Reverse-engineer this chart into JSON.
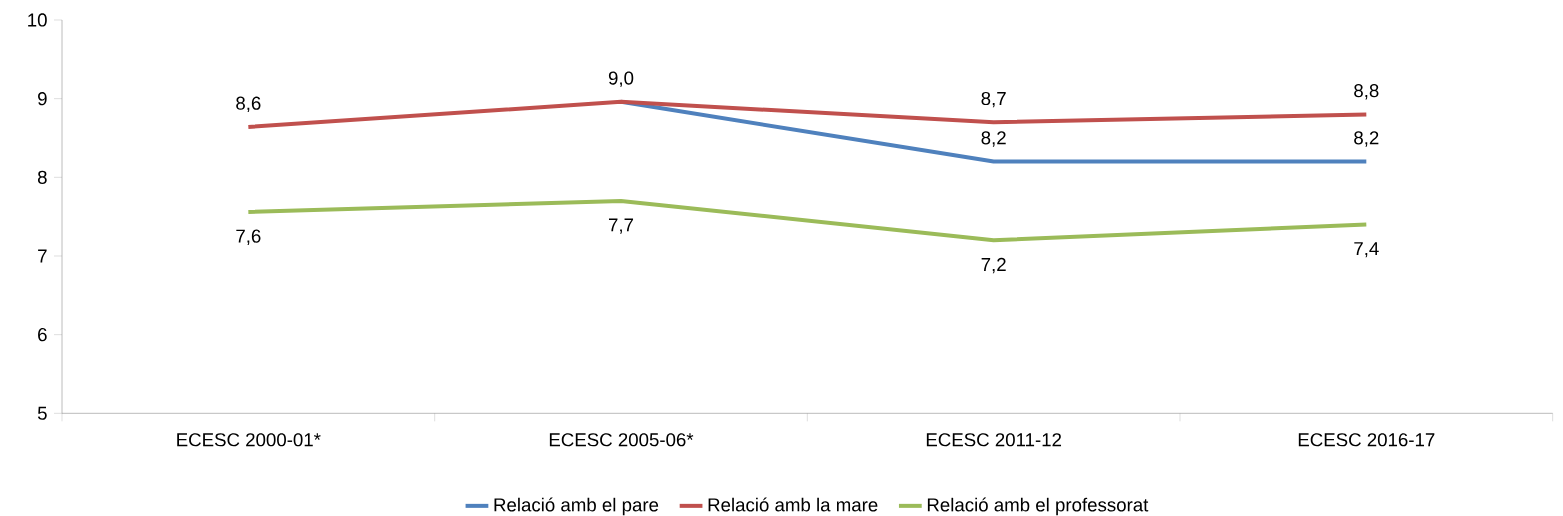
{
  "chart_data": {
    "type": "line",
    "categories": [
      "ECESC 2000-01*",
      "ECESC 2005-06*",
      "ECESC 2011-12",
      "ECESC 2016-17"
    ],
    "series": [
      {
        "name": "Relació amb el pare",
        "color": "#4f81bd",
        "values": [
          null,
          8.96,
          8.2,
          8.2
        ],
        "value_labels": [
          null,
          null,
          "8,2",
          "8,2"
        ]
      },
      {
        "name": "Relació amb la mare",
        "color": "#c0504d",
        "values": [
          8.64,
          8.96,
          8.7,
          8.8
        ],
        "value_labels": [
          "8,6",
          "9,0",
          "8,7",
          "8,8"
        ]
      },
      {
        "name": "Relació amb el professorat",
        "color": "#9bbb59",
        "values": [
          7.56,
          7.7,
          7.2,
          7.4
        ],
        "value_labels": [
          "7,6",
          "7,7",
          "7,2",
          "7,4"
        ]
      }
    ],
    "ylim": [
      5,
      10
    ],
    "yticks": [
      5,
      6,
      7,
      8,
      9,
      10
    ],
    "grid": false,
    "legend": "bottom",
    "marker": "none",
    "line_style": "solid"
  }
}
